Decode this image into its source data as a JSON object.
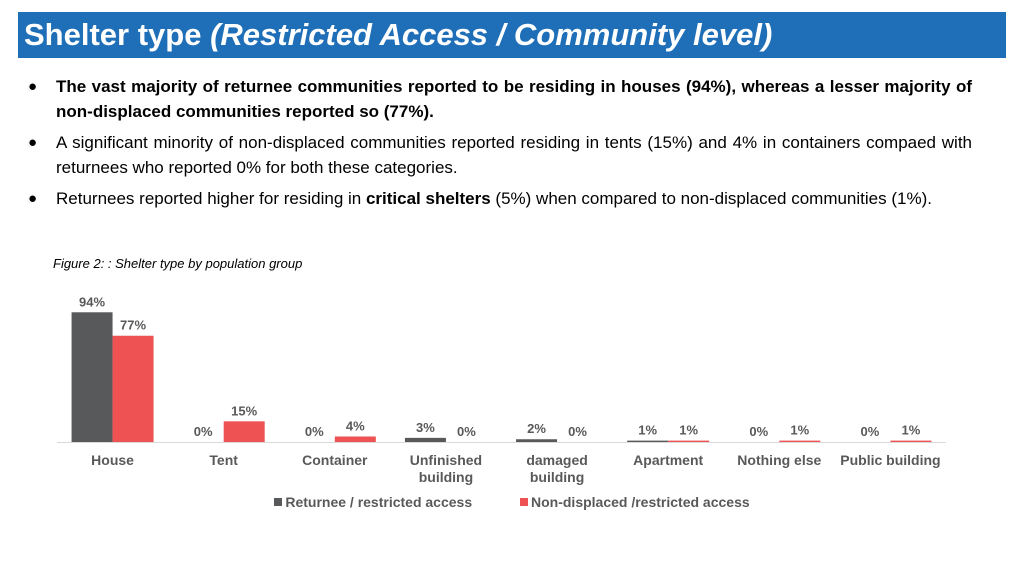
{
  "header": {
    "title_main": "Shelter type ",
    "title_sub": "(Restricted Access / Community level)"
  },
  "bullets": {
    "b1": "The vast majority of returnee communities reported to be residing in houses (94%), whereas a lesser majority of non-displaced communities reported so (77%).",
    "b2": "A significant minority of non-displaced communities reported residing in tents (15%) and 4% in containers compaed with returnees who reported 0% for both these categories.",
    "b3_pre": "Returnees reported higher for residing in ",
    "b3_bold": "critical shelters",
    "b3_post": " (5%) when compared to non-displaced communities (1%)."
  },
  "figure": {
    "caption": "Figure 2: : Shelter type by population group"
  },
  "colors": {
    "header_bg": "#1f6fb8",
    "returnee": "#58595b",
    "nondisplaced": "#ee5253",
    "label_text": "#595959"
  },
  "chart_data": {
    "type": "bar",
    "categories": [
      "House",
      "Tent",
      "Container",
      "Unfinished building",
      "damaged building",
      "Apartment",
      "Nothing else",
      "Public building"
    ],
    "series": [
      {
        "name": "Returnee / restricted access",
        "values": [
          94,
          0,
          0,
          3,
          2,
          1,
          0,
          0
        ]
      },
      {
        "name": "Non-displaced /restricted access",
        "values": [
          77,
          15,
          4,
          0,
          0,
          1,
          1,
          1
        ]
      }
    ],
    "data_labels": [
      [
        "94%",
        "0%",
        "0%",
        "3%",
        "2%",
        "1%",
        "0%",
        "0%"
      ],
      [
        "77%",
        "15%",
        "4%",
        "0%",
        "0%",
        "1%",
        "1%",
        "1%"
      ]
    ],
    "ylim": [
      0,
      100
    ],
    "legend": "bottom",
    "grid": false
  }
}
